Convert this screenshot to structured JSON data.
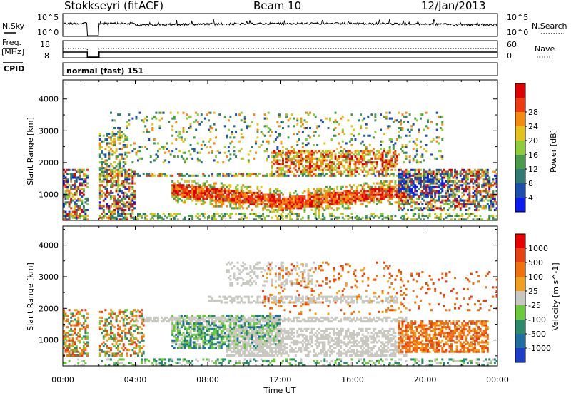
{
  "header": {
    "station": "Stokkseyri (fitACF)",
    "beam": "Beam 10",
    "date": "12/Jan/2013"
  },
  "noise_panel": {
    "left_label": "N.Sky",
    "right_label": "N.Search",
    "left_ticks": [
      "10^5",
      "10^0"
    ],
    "right_ticks": [
      "10^5",
      "10^0"
    ]
  },
  "freq_panel": {
    "left_label_1": "Freq.",
    "left_label_2": "[MHz]",
    "right_label": "Nave",
    "left_ticks": [
      "18",
      "8"
    ],
    "right_ticks": [
      "60",
      "0"
    ]
  },
  "cpid_panel": {
    "label": "CPID",
    "mode": "normal (fast) 151"
  },
  "chart_data": [
    {
      "type": "heatmap",
      "name": "power",
      "ylabel": "Slant Range [km]",
      "xlabel": "Time UT",
      "xlim": [
        0,
        24
      ],
      "ylim": [
        180,
        4600
      ],
      "x_ticks": [
        "00:00",
        "04:00",
        "08:00",
        "12:00",
        "16:00",
        "20:00",
        "00:00"
      ],
      "y_ticks": [
        "1000",
        "2000",
        "3000",
        "4000"
      ],
      "colorbar": {
        "label": "Power [dB]",
        "ticks": [
          "4",
          "8",
          "12",
          "16",
          "20",
          "24",
          "28"
        ],
        "colors": [
          "#0a1cf0",
          "#1c4fae",
          "#2f7a72",
          "#4a9a4c",
          "#8fcc3a",
          "#e4c21c",
          "#f58a10",
          "#ee3a10",
          "#e00000"
        ]
      }
    },
    {
      "type": "heatmap",
      "name": "velocity",
      "ylabel": "Slant Range [km]",
      "xlabel": "Time UT",
      "xlim": [
        0,
        24
      ],
      "ylim": [
        180,
        4600
      ],
      "x_ticks": [
        "00:00",
        "04:00",
        "08:00",
        "12:00",
        "16:00",
        "20:00",
        "00:00"
      ],
      "y_ticks": [
        "1000",
        "2000",
        "3000",
        "4000"
      ],
      "colorbar": {
        "label": "Velocity [m s^-1]",
        "ticks": [
          "1000",
          "500",
          "100",
          "25",
          "-25",
          "-100",
          "-500",
          "-1000"
        ],
        "colors": [
          "#1c3ec8",
          "#1f6ea0",
          "#2b8a6a",
          "#6ec83c",
          "#c8c8c0",
          "#f0a020",
          "#f07010",
          "#e84010",
          "#e80000"
        ]
      }
    }
  ],
  "x_axis": {
    "title": "Time UT",
    "ticks": [
      "00:00",
      "04:00",
      "08:00",
      "12:00",
      "16:00",
      "20:00",
      "00:00"
    ]
  }
}
